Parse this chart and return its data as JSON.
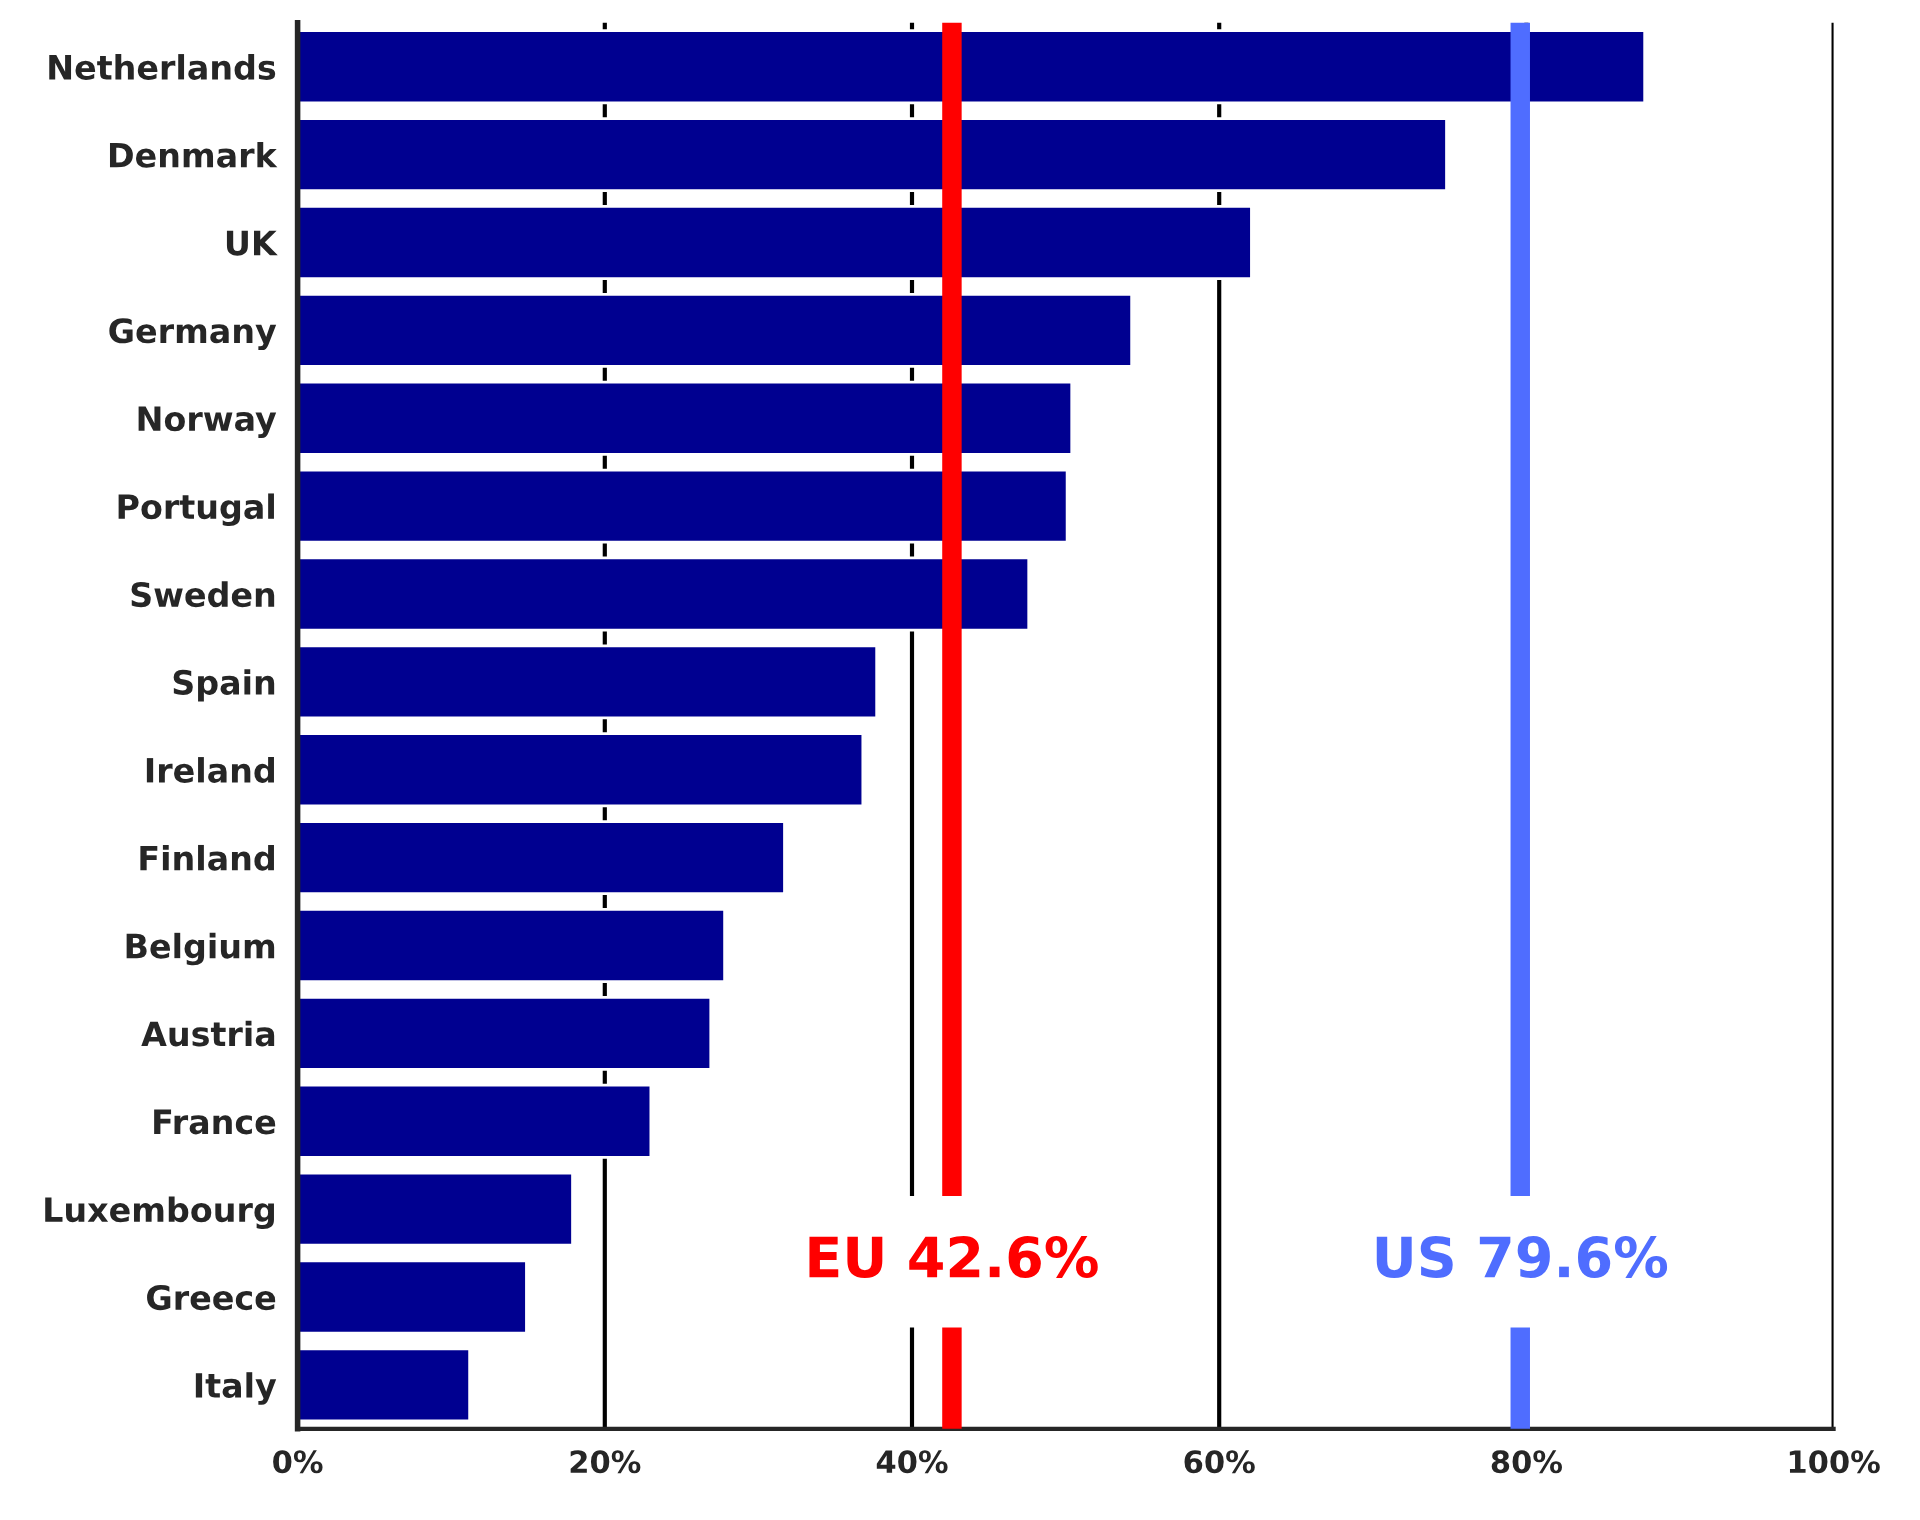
{
  "chart_data": {
    "type": "bar",
    "orientation": "horizontal",
    "categories": [
      "Netherlands",
      "Denmark",
      "UK",
      "Germany",
      "Norway",
      "Portugal",
      "Sweden",
      "Spain",
      "Ireland",
      "Finland",
      "Belgium",
      "Austria",
      "France",
      "Luxembourg",
      "Greece",
      "Italy"
    ],
    "values": [
      87.7,
      74.8,
      62.1,
      54.3,
      50.4,
      50.1,
      47.6,
      37.7,
      36.8,
      31.7,
      27.8,
      26.9,
      23.0,
      17.9,
      14.9,
      11.2
    ],
    "color": "#000090",
    "xlim": [
      0,
      100
    ],
    "xticks": [
      {
        "value": 0,
        "label": "0%"
      },
      {
        "value": 20,
        "label": "20%"
      },
      {
        "value": 40,
        "label": "40%"
      },
      {
        "value": 60,
        "label": "60%"
      },
      {
        "value": 80,
        "label": "80%"
      },
      {
        "value": 100,
        "label": "100%"
      }
    ],
    "grid": "x",
    "ref_lines": [
      {
        "axis": "x",
        "value": 42.6,
        "label": "EU 42.6%",
        "color": "#ff0000"
      },
      {
        "axis": "x",
        "value": 79.6,
        "label": "US 79.6%",
        "color": "#4f6dff"
      }
    ]
  }
}
